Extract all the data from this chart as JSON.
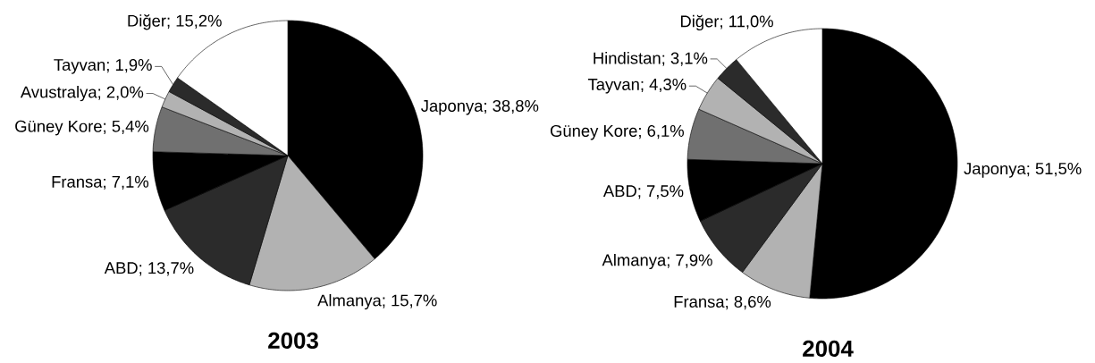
{
  "chart_data": [
    {
      "type": "pie",
      "title": "2003",
      "categories": [
        "Japonya; 38,8%",
        "Almanya; 15,7%",
        "ABD; 13,7%",
        "Fransa; 7,1%",
        "Güney Kore; 5,4%",
        "Avustralya; 2,0%",
        "Tayvan; 1,9%",
        "Diğer; 15,2%"
      ],
      "values": [
        38.8,
        15.7,
        13.7,
        7.1,
        5.4,
        2.0,
        1.9,
        15.2
      ],
      "colors": [
        "#000000",
        "#b2b2b2",
        "#2b2b2b",
        "#000000",
        "#707070",
        "#b2b2b2",
        "#2b2b2b",
        "#ffffff"
      ]
    },
    {
      "type": "pie",
      "title": "2004",
      "categories": [
        "Japonya; 51,5%",
        "Fransa; 8,6%",
        "Almanya; 7,9%",
        "ABD; 7,5%",
        "Güney Kore; 6,1%",
        "Tayvan; 4,3%",
        "Hindistan; 3,1%",
        "Diğer; 11,0%"
      ],
      "values": [
        51.5,
        8.6,
        7.9,
        7.5,
        6.1,
        4.3,
        3.1,
        11.0
      ],
      "colors": [
        "#000000",
        "#b2b2b2",
        "#2b2b2b",
        "#000000",
        "#707070",
        "#b2b2b2",
        "#2b2b2b",
        "#ffffff"
      ]
    }
  ]
}
